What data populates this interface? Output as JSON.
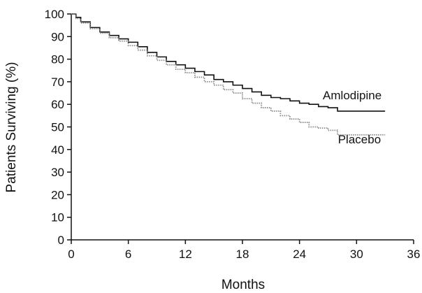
{
  "chart_data": {
    "type": "line",
    "title": "",
    "xlabel": "Months",
    "ylabel": "Patients Surviving (%)",
    "xlim": [
      0,
      36
    ],
    "ylim": [
      0,
      100
    ],
    "x_ticks": [
      "0",
      "6",
      "12",
      "18",
      "24",
      "30",
      "36"
    ],
    "y_ticks": [
      "0",
      "10",
      "20",
      "30",
      "40",
      "50",
      "60",
      "70",
      "80",
      "90",
      "100"
    ],
    "grid": false,
    "legend": "inline labels at line ends",
    "series": [
      {
        "name": "Amlodipine",
        "color": "#111111",
        "style": "solid step",
        "x": [
          0,
          0.5,
          1,
          2,
          3,
          4,
          5,
          6,
          7,
          8,
          9,
          10,
          11,
          12,
          13,
          14,
          15,
          16,
          17,
          18,
          19,
          20,
          21,
          22,
          23,
          24,
          25,
          26,
          27,
          28,
          29,
          30,
          31,
          32,
          33
        ],
        "y": [
          100,
          98.5,
          96.5,
          94,
          92,
          90.5,
          89,
          87.5,
          85.5,
          83,
          81,
          79,
          77.5,
          76,
          74.5,
          73,
          71,
          70,
          68.5,
          67,
          65.5,
          64,
          63,
          62.5,
          61.5,
          60.5,
          60,
          59,
          58.5,
          57,
          57,
          57,
          57,
          57,
          57
        ]
      },
      {
        "name": "Placebo",
        "color": "#888888",
        "style": "dotted step",
        "x": [
          0,
          0.5,
          1,
          2,
          3,
          4,
          5,
          6,
          7,
          8,
          9,
          10,
          11,
          12,
          13,
          14,
          15,
          16,
          17,
          18,
          19,
          20,
          21,
          22,
          23,
          24,
          25,
          26,
          27,
          28,
          29,
          30,
          31,
          32,
          33
        ],
        "y": [
          100,
          98,
          96,
          93.5,
          91.5,
          89.5,
          88,
          86,
          84,
          81.5,
          79.5,
          77.5,
          75.5,
          74,
          72,
          70,
          68.5,
          66.5,
          65,
          62.5,
          60.5,
          58.5,
          57,
          55,
          53.5,
          52,
          50,
          49.5,
          48.5,
          46.5,
          46.5,
          46.5,
          46.5,
          46.5,
          46.5
        ]
      }
    ]
  }
}
